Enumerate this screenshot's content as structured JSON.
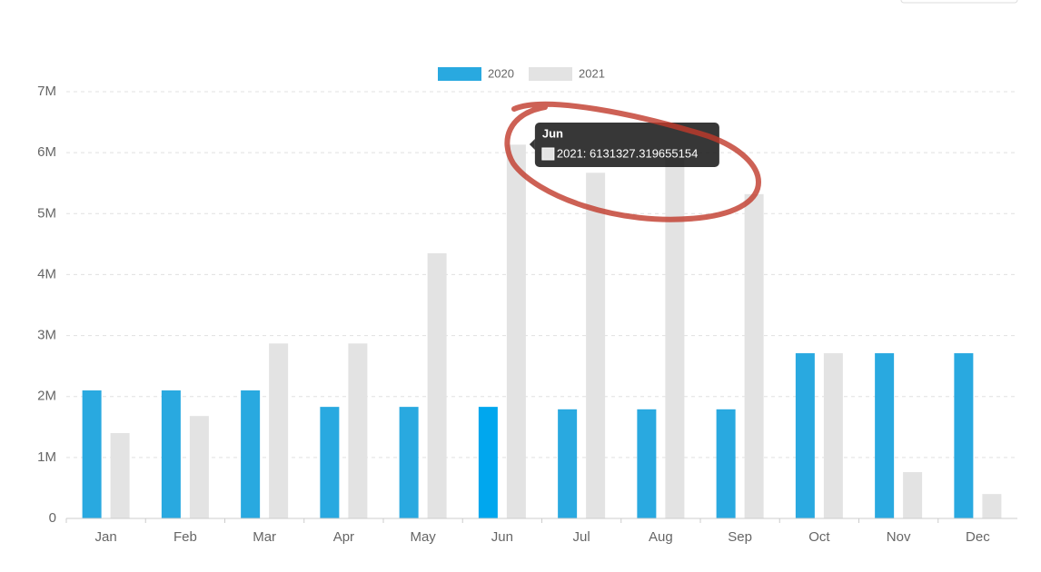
{
  "chart_data": {
    "type": "bar",
    "categories": [
      "Jan",
      "Feb",
      "Mar",
      "Apr",
      "May",
      "Jun",
      "Jul",
      "Aug",
      "Sep",
      "Oct",
      "Nov",
      "Dec"
    ],
    "series": [
      {
        "name": "2020",
        "color": "#29a9e0",
        "hover_color": "#00a7ee",
        "values": [
          2100000,
          2100000,
          2100000,
          1830000,
          1830000,
          1830000,
          1790000,
          1790000,
          1790000,
          2710000,
          2710000,
          2710000
        ]
      },
      {
        "name": "2021",
        "color": "#e3e3e3",
        "values": [
          1400000,
          1680000,
          2870000,
          2870000,
          4350000,
          6131327.319655154,
          5670000,
          5950000,
          5320000,
          2710000,
          760000,
          400000
        ]
      }
    ],
    "ylim": [
      0,
      7000000
    ],
    "yticks": [
      {
        "value": 0,
        "label": "0"
      },
      {
        "value": 1000000,
        "label": "1M"
      },
      {
        "value": 2000000,
        "label": "2M"
      },
      {
        "value": 3000000,
        "label": "3M"
      },
      {
        "value": 4000000,
        "label": "4M"
      },
      {
        "value": 5000000,
        "label": "5M"
      },
      {
        "value": 6000000,
        "label": "6M"
      },
      {
        "value": 7000000,
        "label": "7M"
      }
    ],
    "grid": true,
    "tooltip": {
      "title": "Jun",
      "label": "2021: 6131327.319655154"
    }
  }
}
